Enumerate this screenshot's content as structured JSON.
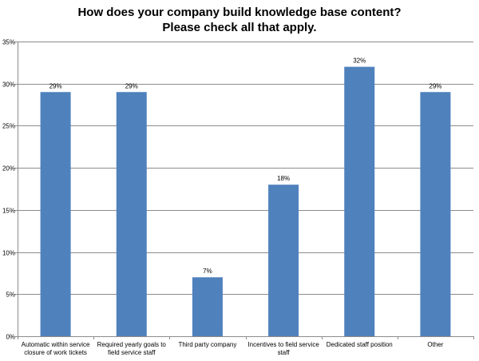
{
  "chart_data": {
    "type": "bar",
    "title_lines": [
      "How does your company build knowledge base content?",
      "Please check all that apply."
    ],
    "categories": [
      [
        "Automatic within service",
        "closure of work tickets"
      ],
      [
        "Required yearly goals to",
        "field service staff"
      ],
      [
        "Third party company"
      ],
      [
        "Incentives to field service",
        "staff"
      ],
      [
        "Dedicated staff position"
      ],
      [
        "Other"
      ]
    ],
    "values": [
      29,
      29,
      7,
      18,
      32,
      29
    ],
    "data_labels": [
      "29%",
      "29%",
      "7%",
      "18%",
      "32%",
      "29%"
    ],
    "ylim": [
      0,
      35
    ],
    "yticks": [
      0,
      5,
      10,
      15,
      20,
      25,
      30,
      35
    ],
    "ytick_labels": [
      "0%",
      "5%",
      "10%",
      "15%",
      "20%",
      "25%",
      "30%",
      "35%"
    ],
    "grid": true,
    "legend": "none",
    "bar_color": "#4f81bd",
    "grid_color": "#8c8c8c"
  }
}
